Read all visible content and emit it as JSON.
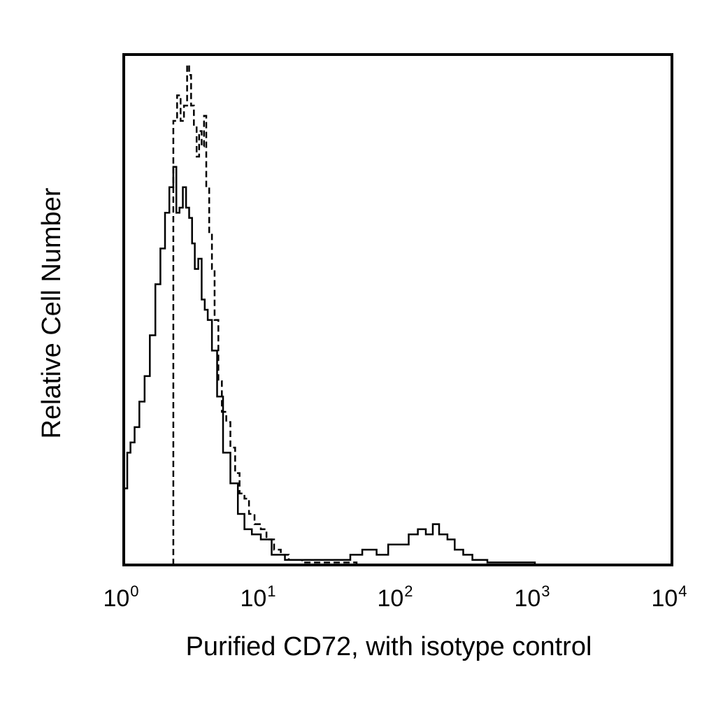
{
  "chart_data": {
    "type": "line",
    "title": "",
    "xlabel": "Purified CD72, with isotype control",
    "ylabel": "Relative Cell Number",
    "xscale": "log",
    "xlim": [
      1,
      10000
    ],
    "ylim": [
      0,
      1.0
    ],
    "grid": false,
    "legend": "none",
    "x_ticks": [
      {
        "value": 1,
        "base": "10",
        "exp": "0"
      },
      {
        "value": 10,
        "base": "10",
        "exp": "1"
      },
      {
        "value": 100,
        "base": "10",
        "exp": "2"
      },
      {
        "value": 1000,
        "base": "10",
        "exp": "3"
      },
      {
        "value": 10000,
        "base": "10",
        "exp": "4"
      }
    ],
    "series": [
      {
        "style": "solid",
        "color": "#000000",
        "x": [
          1.0,
          1.06,
          1.12,
          1.2,
          1.3,
          1.42,
          1.55,
          1.7,
          1.85,
          2.0,
          2.15,
          2.3,
          2.42,
          2.55,
          2.7,
          2.85,
          3.0,
          3.15,
          3.3,
          3.5,
          3.7,
          3.9,
          4.1,
          4.4,
          4.8,
          5.3,
          6.0,
          6.8,
          7.6,
          8.6,
          10.0,
          12.0,
          15.0,
          20.0,
          30.0,
          45.0,
          55.0,
          70.0,
          85.0,
          100.0,
          120.0,
          140.0,
          160.0,
          180.0,
          200.0,
          230.0,
          260.0,
          300.0,
          350.0,
          450.0,
          1000.0
        ],
        "values": [
          0.15,
          0.22,
          0.24,
          0.27,
          0.32,
          0.37,
          0.45,
          0.55,
          0.62,
          0.69,
          0.74,
          0.78,
          0.69,
          0.7,
          0.74,
          0.7,
          0.68,
          0.63,
          0.58,
          0.6,
          0.52,
          0.5,
          0.48,
          0.42,
          0.33,
          0.22,
          0.16,
          0.1,
          0.07,
          0.06,
          0.05,
          0.02,
          0.01,
          0.01,
          0.01,
          0.02,
          0.03,
          0.02,
          0.04,
          0.04,
          0.06,
          0.07,
          0.06,
          0.08,
          0.06,
          0.05,
          0.03,
          0.02,
          0.01,
          0.005,
          0.0
        ]
      },
      {
        "style": "dashed",
        "color": "#000000",
        "x": [
          2.3,
          2.45,
          2.6,
          2.75,
          2.9,
          3.0,
          3.1,
          3.25,
          3.4,
          3.55,
          3.7,
          3.85,
          4.0,
          4.2,
          4.4,
          4.6,
          4.9,
          5.2,
          5.6,
          6.0,
          6.5,
          7.0,
          7.6,
          8.2,
          9.0,
          10.0,
          11.0,
          12.5,
          14.0,
          16.0,
          20.0,
          30.0,
          50.0,
          150.0,
          300.0
        ],
        "values": [
          0.87,
          0.92,
          0.87,
          0.9,
          0.98,
          0.96,
          0.9,
          0.86,
          0.8,
          0.85,
          0.82,
          0.88,
          0.74,
          0.65,
          0.58,
          0.48,
          0.36,
          0.3,
          0.28,
          0.23,
          0.18,
          0.14,
          0.13,
          0.1,
          0.08,
          0.07,
          0.05,
          0.03,
          0.02,
          0.01,
          0.005,
          0.005,
          0.0,
          0.0,
          0.0
        ]
      }
    ]
  }
}
